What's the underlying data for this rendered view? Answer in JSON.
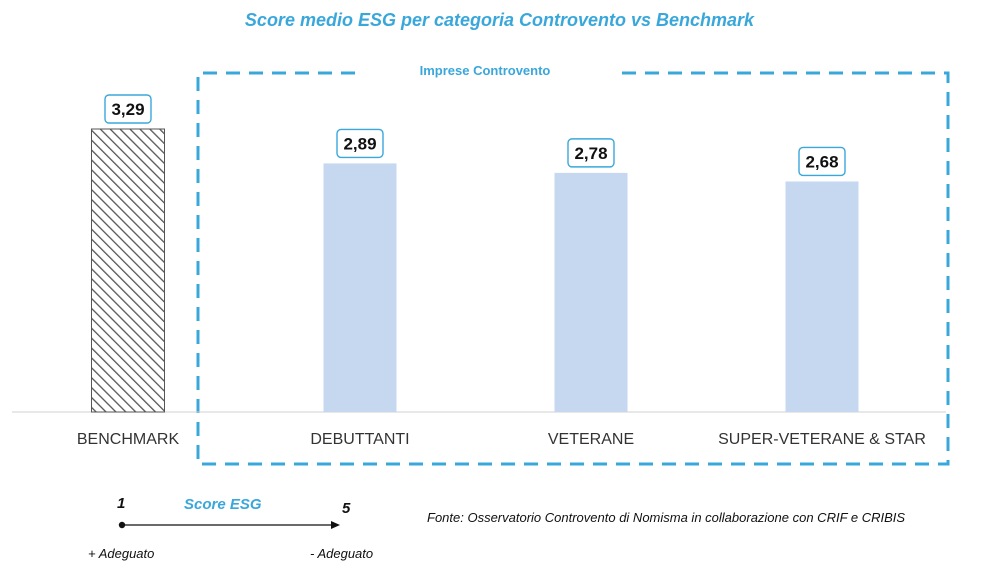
{
  "chart_data": {
    "type": "bar",
    "title": "Score medio ESG per categoria Controvento vs Benchmark",
    "group_label": "Imprese Controvento",
    "categories": [
      "BENCHMARK",
      "DEBUTTANTI",
      "VETERANE",
      "SUPER-VETERANE & STAR"
    ],
    "values": [
      3.29,
      2.89,
      2.78,
      2.68
    ],
    "value_labels": [
      "3,29",
      "2,89",
      "2,78",
      "2,68"
    ],
    "ylim": [
      0,
      3.29
    ],
    "colors": {
      "benchmark_hatch": "#555555",
      "bar_fill": "#c5d8f0",
      "accent": "#3aa7db"
    }
  },
  "scale_legend": {
    "title": "Score ESG",
    "min": "1",
    "max": "5",
    "min_label": "+ Adeguato",
    "max_label": "- Adeguato"
  },
  "source": "Fonte: Osservatorio Controvento di Nomisma in collaborazione con CRIF e CRIBIS"
}
